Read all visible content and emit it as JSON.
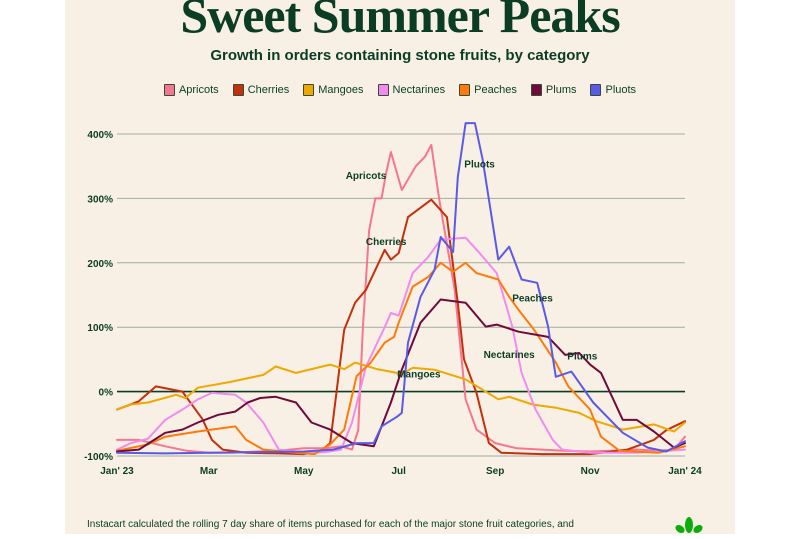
{
  "header": {
    "title": "Sweet Summer Peaks",
    "subtitle": "Growth in orders containing stone fruits, by category"
  },
  "footnote": "Instacart calculated the rolling 7 day share of items purchased for each of the major stone fruit categories, and",
  "logo": {
    "name": "instacart-carrot-logo",
    "color": "#0aad0a"
  },
  "chart_data": {
    "type": "line",
    "title": "Sweet Summer Peaks",
    "subtitle": "Growth in orders containing stone fruits, by category",
    "xlabel": "",
    "ylabel": "",
    "xlim": [
      "2023-01-01",
      "2024-01-01"
    ],
    "ylim": [
      -100,
      400
    ],
    "x_ticks": [
      {
        "date": "2023-01-01",
        "label": "Jan' 23"
      },
      {
        "date": "2023-03-01",
        "label": "Mar"
      },
      {
        "date": "2023-05-01",
        "label": "May"
      },
      {
        "date": "2023-07-01",
        "label": "Jul"
      },
      {
        "date": "2023-09-01",
        "label": "Sep"
      },
      {
        "date": "2023-11-01",
        "label": "Nov"
      },
      {
        "date": "2024-01-01",
        "label": "Jan' 24"
      }
    ],
    "y_ticks": [
      {
        "value": 400,
        "label": "400%"
      },
      {
        "value": 300,
        "label": "300%"
      },
      {
        "value": 200,
        "label": "200%"
      },
      {
        "value": 100,
        "label": "100%"
      },
      {
        "value": 0,
        "label": "0%"
      },
      {
        "value": -100,
        "label": "-100%"
      }
    ],
    "grid": true,
    "legend_position": "top-center",
    "series": [
      {
        "name": "Apricots",
        "color": "#f7768f",
        "label_date": "2023-06-10",
        "label_value": 330,
        "points": [
          [
            "2023-01-01",
            -75
          ],
          [
            "2023-01-15",
            -75
          ],
          [
            "2023-02-01",
            -85
          ],
          [
            "2023-02-15",
            -92
          ],
          [
            "2023-03-01",
            -95
          ],
          [
            "2023-03-15",
            -95
          ],
          [
            "2023-04-01",
            -93
          ],
          [
            "2023-04-15",
            -92
          ],
          [
            "2023-05-01",
            -88
          ],
          [
            "2023-05-15",
            -88
          ],
          [
            "2023-05-25",
            -85
          ],
          [
            "2023-06-01",
            -90
          ],
          [
            "2023-06-05",
            -60
          ],
          [
            "2023-06-08",
            100
          ],
          [
            "2023-06-12",
            250
          ],
          [
            "2023-06-16",
            300
          ],
          [
            "2023-06-20",
            300
          ],
          [
            "2023-06-23",
            340
          ],
          [
            "2023-06-26",
            372
          ],
          [
            "2023-07-03",
            313
          ],
          [
            "2023-07-12",
            350
          ],
          [
            "2023-07-18",
            365
          ],
          [
            "2023-07-22",
            383
          ],
          [
            "2023-07-27",
            300
          ],
          [
            "2023-08-06",
            158
          ],
          [
            "2023-08-13",
            -12
          ],
          [
            "2023-08-20",
            -59
          ],
          [
            "2023-09-01",
            -80
          ],
          [
            "2023-09-15",
            -88
          ],
          [
            "2023-10-01",
            -90
          ],
          [
            "2023-10-15",
            -92
          ],
          [
            "2023-11-01",
            -93
          ],
          [
            "2023-11-15",
            -92
          ],
          [
            "2023-12-01",
            -90
          ],
          [
            "2023-12-15",
            -92
          ],
          [
            "2023-12-25",
            -90
          ],
          [
            "2024-01-01",
            -70
          ]
        ]
      },
      {
        "name": "Cherries",
        "color": "#c4300c",
        "label_date": "2023-06-23",
        "label_value": 228,
        "points": [
          [
            "2023-01-01",
            -28
          ],
          [
            "2023-01-15",
            -15
          ],
          [
            "2023-01-26",
            8
          ],
          [
            "2023-02-12",
            0
          ],
          [
            "2023-02-25",
            -43
          ],
          [
            "2023-03-03",
            -75
          ],
          [
            "2023-03-10",
            -90
          ],
          [
            "2023-03-25",
            -95
          ],
          [
            "2023-04-15",
            -96
          ],
          [
            "2023-05-01",
            -97
          ],
          [
            "2023-05-12",
            -92
          ],
          [
            "2023-05-18",
            -80
          ],
          [
            "2023-05-27",
            96
          ],
          [
            "2023-06-03",
            138
          ],
          [
            "2023-06-10",
            158
          ],
          [
            "2023-06-22",
            220
          ],
          [
            "2023-06-26",
            205
          ],
          [
            "2023-07-01",
            215
          ],
          [
            "2023-07-07",
            271
          ],
          [
            "2023-07-22",
            298
          ],
          [
            "2023-08-01",
            271
          ],
          [
            "2023-08-08",
            138
          ],
          [
            "2023-08-12",
            50
          ],
          [
            "2023-08-20",
            -2
          ],
          [
            "2023-08-28",
            -80
          ],
          [
            "2023-09-05",
            -95
          ],
          [
            "2023-10-01",
            -97
          ],
          [
            "2023-11-01",
            -97
          ],
          [
            "2023-11-25",
            -90
          ],
          [
            "2023-12-12",
            -75
          ],
          [
            "2023-12-20",
            -60
          ],
          [
            "2024-01-01",
            -46
          ]
        ]
      },
      {
        "name": "Mangoes",
        "color": "#eea800",
        "label_date": "2023-07-14",
        "label_value": 22,
        "points": [
          [
            "2023-01-01",
            -28
          ],
          [
            "2023-01-10",
            -20
          ],
          [
            "2023-01-21",
            -17
          ],
          [
            "2023-02-08",
            -5
          ],
          [
            "2023-02-14",
            -10
          ],
          [
            "2023-02-22",
            6
          ],
          [
            "2023-03-15",
            15
          ],
          [
            "2023-04-05",
            26
          ],
          [
            "2023-04-13",
            39
          ],
          [
            "2023-04-26",
            29
          ],
          [
            "2023-05-18",
            42
          ],
          [
            "2023-05-27",
            35
          ],
          [
            "2023-06-03",
            45
          ],
          [
            "2023-06-17",
            35
          ],
          [
            "2023-06-30",
            29
          ],
          [
            "2023-07-01",
            24
          ],
          [
            "2023-07-10",
            37
          ],
          [
            "2023-07-24",
            34
          ],
          [
            "2023-08-13",
            19
          ],
          [
            "2023-09-03",
            -12
          ],
          [
            "2023-09-10",
            -8
          ],
          [
            "2023-09-25",
            -20
          ],
          [
            "2023-10-10",
            -25
          ],
          [
            "2023-10-25",
            -33
          ],
          [
            "2023-11-05",
            -46
          ],
          [
            "2023-11-22",
            -59
          ],
          [
            "2023-12-12",
            -51
          ],
          [
            "2023-12-25",
            -62
          ],
          [
            "2024-01-01",
            -48
          ]
        ]
      },
      {
        "name": "Nectarines",
        "color": "#f08cf0",
        "label_date": "2023-09-10",
        "label_value": 52,
        "points": [
          [
            "2023-01-01",
            -90
          ],
          [
            "2023-01-10",
            -80
          ],
          [
            "2023-01-21",
            -73
          ],
          [
            "2023-02-01",
            -44
          ],
          [
            "2023-02-12",
            -28
          ],
          [
            "2023-02-22",
            -12
          ],
          [
            "2023-03-03",
            -2
          ],
          [
            "2023-03-18",
            -5
          ],
          [
            "2023-03-25",
            -17
          ],
          [
            "2023-04-05",
            -48
          ],
          [
            "2023-04-15",
            -90
          ],
          [
            "2023-05-01",
            -95
          ],
          [
            "2023-05-15",
            -94
          ],
          [
            "2023-05-25",
            -90
          ],
          [
            "2023-06-01",
            -48
          ],
          [
            "2023-06-10",
            39
          ],
          [
            "2023-06-22",
            100
          ],
          [
            "2023-06-26",
            122
          ],
          [
            "2023-07-01",
            118
          ],
          [
            "2023-07-10",
            184
          ],
          [
            "2023-07-20",
            209
          ],
          [
            "2023-07-28",
            236
          ],
          [
            "2023-08-13",
            239
          ],
          [
            "2023-08-22",
            215
          ],
          [
            "2023-09-02",
            184
          ],
          [
            "2023-09-12",
            101
          ],
          [
            "2023-09-18",
            29
          ],
          [
            "2023-09-27",
            -28
          ],
          [
            "2023-10-08",
            -75
          ],
          [
            "2023-10-14",
            -90
          ],
          [
            "2023-11-01",
            -95
          ],
          [
            "2023-12-01",
            -95
          ],
          [
            "2024-01-01",
            -90
          ]
        ]
      },
      {
        "name": "Peaches",
        "color": "#ff7a0a",
        "label_date": "2023-09-25",
        "label_value": 140,
        "points": [
          [
            "2023-01-01",
            -92
          ],
          [
            "2023-01-21",
            -82
          ],
          [
            "2023-02-01",
            -70
          ],
          [
            "2023-02-22",
            -62
          ],
          [
            "2023-03-18",
            -54
          ],
          [
            "2023-03-25",
            -75
          ],
          [
            "2023-04-05",
            -90
          ],
          [
            "2023-04-26",
            -95
          ],
          [
            "2023-05-08",
            -97
          ],
          [
            "2023-05-18",
            -82
          ],
          [
            "2023-05-27",
            -59
          ],
          [
            "2023-06-04",
            24
          ],
          [
            "2023-06-13",
            45
          ],
          [
            "2023-06-22",
            76
          ],
          [
            "2023-06-28",
            85
          ],
          [
            "2023-07-01",
            107
          ],
          [
            "2023-07-10",
            163
          ],
          [
            "2023-07-20",
            178
          ],
          [
            "2023-07-28",
            200
          ],
          [
            "2023-08-05",
            186
          ],
          [
            "2023-08-13",
            200
          ],
          [
            "2023-08-20",
            184
          ],
          [
            "2023-09-03",
            174
          ],
          [
            "2023-09-10",
            147
          ],
          [
            "2023-09-16",
            127
          ],
          [
            "2023-09-26",
            96
          ],
          [
            "2023-10-10",
            45
          ],
          [
            "2023-10-18",
            8
          ],
          [
            "2023-11-01",
            -28
          ],
          [
            "2023-11-08",
            -70
          ],
          [
            "2023-11-20",
            -92
          ],
          [
            "2023-12-15",
            -95
          ],
          [
            "2024-01-01",
            -85
          ]
        ]
      },
      {
        "name": "Plums",
        "color": "#6e0a3c",
        "label_date": "2023-10-27",
        "label_value": 50,
        "points": [
          [
            "2023-01-01",
            -93
          ],
          [
            "2023-01-15",
            -90
          ],
          [
            "2023-02-01",
            -64
          ],
          [
            "2023-02-12",
            -59
          ],
          [
            "2023-02-22",
            -48
          ],
          [
            "2023-03-07",
            -36
          ],
          [
            "2023-03-18",
            -31
          ],
          [
            "2023-03-26",
            -17
          ],
          [
            "2023-04-03",
            -10
          ],
          [
            "2023-04-13",
            -8
          ],
          [
            "2023-04-26",
            -17
          ],
          [
            "2023-05-06",
            -48
          ],
          [
            "2023-05-18",
            -59
          ],
          [
            "2023-06-01",
            -80
          ],
          [
            "2023-06-15",
            -85
          ],
          [
            "2023-06-26",
            -17
          ],
          [
            "2023-07-03",
            34
          ],
          [
            "2023-07-15",
            107
          ],
          [
            "2023-07-28",
            143
          ],
          [
            "2023-08-13",
            138
          ],
          [
            "2023-08-26",
            101
          ],
          [
            "2023-09-02",
            104
          ],
          [
            "2023-09-16",
            93
          ],
          [
            "2023-10-05",
            85
          ],
          [
            "2023-10-16",
            57
          ],
          [
            "2023-10-25",
            60
          ],
          [
            "2023-11-01",
            42
          ],
          [
            "2023-11-08",
            29
          ],
          [
            "2023-11-22",
            -44
          ],
          [
            "2023-12-01",
            -44
          ],
          [
            "2023-12-12",
            -62
          ],
          [
            "2023-12-25",
            -87
          ],
          [
            "2024-01-01",
            -80
          ]
        ]
      },
      {
        "name": "Pluots",
        "color": "#5a5ae6",
        "label_date": "2023-08-22",
        "label_value": 348,
        "points": [
          [
            "2023-01-01",
            -95
          ],
          [
            "2023-02-01",
            -96
          ],
          [
            "2023-03-01",
            -95
          ],
          [
            "2023-04-01",
            -94
          ],
          [
            "2023-05-01",
            -93
          ],
          [
            "2023-05-20",
            -90
          ],
          [
            "2023-06-04",
            -80
          ],
          [
            "2023-06-15",
            -80
          ],
          [
            "2023-06-20",
            -54
          ],
          [
            "2023-06-30",
            -39
          ],
          [
            "2023-07-03",
            -33
          ],
          [
            "2023-07-07",
            76
          ],
          [
            "2023-07-15",
            147
          ],
          [
            "2023-07-24",
            189
          ],
          [
            "2023-07-28",
            240
          ],
          [
            "2023-08-05",
            217
          ],
          [
            "2023-08-08",
            333
          ],
          [
            "2023-08-13",
            417
          ],
          [
            "2023-08-19",
            417
          ],
          [
            "2023-08-24",
            360
          ],
          [
            "2023-09-03",
            205
          ],
          [
            "2023-09-10",
            225
          ],
          [
            "2023-09-18",
            174
          ],
          [
            "2023-09-28",
            169
          ],
          [
            "2023-10-05",
            101
          ],
          [
            "2023-10-10",
            23
          ],
          [
            "2023-10-20",
            31
          ],
          [
            "2023-11-03",
            -17
          ],
          [
            "2023-11-22",
            -64
          ],
          [
            "2023-12-08",
            -87
          ],
          [
            "2023-12-20",
            -93
          ],
          [
            "2024-01-01",
            -77
          ]
        ]
      }
    ]
  }
}
